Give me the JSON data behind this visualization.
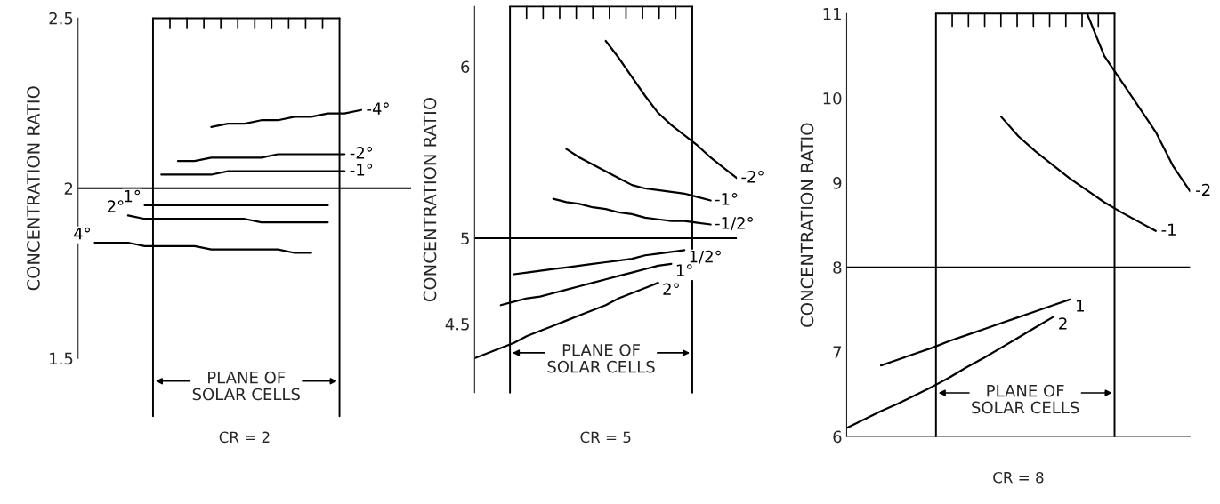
{
  "chart_data": [
    {
      "type": "line",
      "xlabel": "CR = 2",
      "ylabel": "CONCENTRATION RATIO",
      "tick_labels": "y",
      "categories": [
        null,
        null,
        null,
        null,
        null,
        null,
        null,
        null,
        null,
        null,
        null,
        null,
        null,
        null,
        null,
        null,
        null,
        null,
        null,
        null,
        null
      ],
      "ylim": [
        1.5,
        2.5
      ],
      "yticks": [
        1.5,
        2,
        2.5
      ],
      "ref_lines": [
        {
          "axis": "y",
          "value": 2,
          "color": "#000000"
        }
      ],
      "annotations": [
        "PLANE OF\nSOLAR CELLS"
      ],
      "series": [
        {
          "name": "-4°",
          "color": "#000000",
          "values": [
            null,
            null,
            null,
            null,
            null,
            null,
            null,
            null,
            2.18,
            2.19,
            2.19,
            2.2,
            2.2,
            2.21,
            2.21,
            2.22,
            2.22,
            2.23,
            null,
            null,
            null
          ]
        },
        {
          "name": "-2°",
          "color": "#000000",
          "values": [
            null,
            null,
            null,
            null,
            null,
            null,
            2.08,
            2.08,
            2.09,
            2.09,
            2.09,
            2.09,
            2.1,
            2.1,
            2.1,
            2.1,
            2.1,
            null,
            null,
            null,
            null
          ]
        },
        {
          "name": "-1°",
          "color": "#000000",
          "values": [
            null,
            null,
            null,
            null,
            null,
            2.04,
            2.04,
            2.04,
            2.04,
            2.05,
            2.05,
            2.05,
            2.05,
            2.05,
            2.05,
            2.05,
            2.05,
            null,
            null,
            null,
            null
          ]
        },
        {
          "name": "1°",
          "color": "#000000",
          "values": [
            null,
            null,
            null,
            null,
            1.95,
            1.95,
            1.95,
            1.95,
            1.95,
            1.95,
            1.95,
            1.95,
            1.95,
            1.95,
            1.95,
            1.95,
            null,
            null,
            null,
            null,
            null
          ]
        },
        {
          "name": "2°",
          "color": "#000000",
          "values": [
            null,
            null,
            null,
            1.92,
            1.91,
            1.91,
            1.91,
            1.91,
            1.91,
            1.91,
            1.91,
            1.9,
            1.9,
            1.9,
            1.9,
            1.9,
            null,
            null,
            null,
            null,
            null
          ]
        },
        {
          "name": "4°",
          "color": "#000000",
          "values": [
            null,
            1.84,
            1.84,
            1.84,
            1.83,
            1.83,
            1.83,
            1.83,
            1.82,
            1.82,
            1.82,
            1.82,
            1.82,
            1.81,
            1.81,
            null,
            null,
            null,
            null,
            null,
            null
          ]
        }
      ]
    },
    {
      "type": "line",
      "xlabel": "CR = 5",
      "ylabel": "CONCENTRATION RATIO",
      "tick_labels": "y",
      "categories": [
        null,
        null,
        null,
        null,
        null,
        null,
        null,
        null,
        null,
        null,
        null,
        null,
        null,
        null,
        null,
        null,
        null,
        null,
        null,
        null,
        null
      ],
      "ylim": [
        4.1,
        6.35
      ],
      "yticks": [
        4.5,
        5,
        6
      ],
      "ref_lines": [
        {
          "axis": "y",
          "value": 5,
          "color": "#000000"
        }
      ],
      "annotations": [
        "PLANE OF\nSOLAR CELLS"
      ],
      "series": [
        {
          "name": "-2°",
          "color": "#000000",
          "values": [
            null,
            null,
            null,
            null,
            null,
            null,
            null,
            null,
            null,
            null,
            6.15,
            6.05,
            5.94,
            5.83,
            5.73,
            5.66,
            5.6,
            5.54,
            5.47,
            5.41,
            5.35
          ]
        },
        {
          "name": "-1°",
          "color": "#000000",
          "values": [
            null,
            null,
            null,
            null,
            null,
            null,
            null,
            5.52,
            5.47,
            5.43,
            5.39,
            5.35,
            5.31,
            5.29,
            5.28,
            5.27,
            5.26,
            5.24,
            5.22,
            null,
            null
          ]
        },
        {
          "name": "-1/2°",
          "color": "#000000",
          "values": [
            null,
            null,
            null,
            null,
            null,
            null,
            5.23,
            5.21,
            5.2,
            5.18,
            5.17,
            5.15,
            5.14,
            5.12,
            5.11,
            5.1,
            5.1,
            5.09,
            5.08,
            null,
            null
          ]
        },
        {
          "name": "1/2°",
          "color": "#000000",
          "values": [
            null,
            null,
            null,
            4.79,
            4.8,
            4.81,
            4.82,
            4.83,
            4.84,
            4.85,
            4.86,
            4.87,
            4.88,
            4.9,
            4.91,
            4.92,
            4.93,
            null,
            null,
            null,
            null
          ]
        },
        {
          "name": "1°",
          "color": "#000000",
          "values": [
            null,
            null,
            4.61,
            4.63,
            4.65,
            4.66,
            4.68,
            4.7,
            4.72,
            4.74,
            4.76,
            4.78,
            4.8,
            4.82,
            4.84,
            4.85,
            null,
            null,
            null,
            null,
            null
          ]
        },
        {
          "name": "2°",
          "color": "#000000",
          "values": [
            4.3,
            4.33,
            4.36,
            4.39,
            4.43,
            4.46,
            4.49,
            4.52,
            4.55,
            4.58,
            4.61,
            4.65,
            4.68,
            4.71,
            4.74,
            null,
            null,
            null,
            null,
            null,
            null
          ]
        }
      ]
    },
    {
      "type": "line",
      "xlabel": "CR = 8",
      "ylabel": "CONCENTRATION RATIO",
      "tick_labels": "y",
      "categories": [
        null,
        null,
        null,
        null,
        null,
        null,
        null,
        null,
        null,
        null,
        null,
        null,
        null,
        null,
        null,
        null,
        null,
        null,
        null,
        null,
        null
      ],
      "ylim": [
        6,
        11
      ],
      "yticks": [
        6,
        7,
        8,
        9,
        10,
        11
      ],
      "ref_lines": [
        {
          "axis": "y",
          "value": 8,
          "color": "#000000"
        }
      ],
      "annotations": [
        "PLANE OF\nSOLAR CELLS"
      ],
      "series": [
        {
          "name": "-2",
          "color": "#000000",
          "values": [
            null,
            null,
            null,
            null,
            null,
            null,
            null,
            null,
            null,
            null,
            null,
            null,
            null,
            null,
            11.0,
            10.5,
            10.2,
            9.9,
            9.6,
            9.2,
            8.9
          ]
        },
        {
          "name": "-1",
          "color": "#000000",
          "values": [
            null,
            null,
            null,
            null,
            null,
            null,
            null,
            null,
            null,
            9.78,
            9.55,
            9.37,
            9.21,
            9.05,
            8.91,
            8.77,
            8.65,
            8.54,
            8.43,
            null,
            null
          ]
        },
        {
          "name": "1",
          "color": "#000000",
          "values": [
            null,
            null,
            6.84,
            6.91,
            6.98,
            7.05,
            7.13,
            7.2,
            7.27,
            7.34,
            7.41,
            7.48,
            7.55,
            7.62,
            null,
            null,
            null,
            null,
            null,
            null,
            null
          ]
        },
        {
          "name": "2",
          "color": "#000000",
          "values": [
            6.1,
            6.2,
            6.3,
            6.39,
            6.49,
            6.59,
            6.7,
            6.82,
            6.93,
            7.05,
            7.17,
            7.29,
            7.41,
            null,
            null,
            null,
            null,
            null,
            null,
            null,
            null
          ]
        }
      ]
    }
  ]
}
